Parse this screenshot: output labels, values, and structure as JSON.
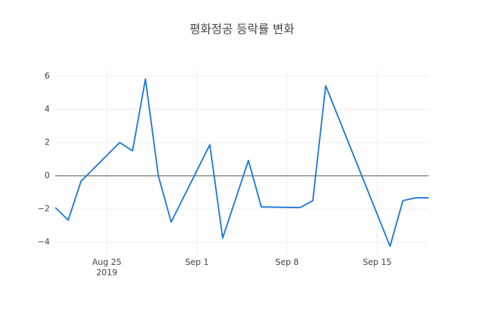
{
  "chart_data": {
    "type": "line",
    "title": "평화정공 등락률 변화",
    "x": [
      "2019-08-21",
      "2019-08-22",
      "2019-08-23",
      "2019-08-26",
      "2019-08-27",
      "2019-08-28",
      "2019-08-29",
      "2019-08-30",
      "2019-09-02",
      "2019-09-03",
      "2019-09-05",
      "2019-09-06",
      "2019-09-09",
      "2019-09-10",
      "2019-09-11",
      "2019-09-16",
      "2019-09-17",
      "2019-09-18",
      "2019-09-19"
    ],
    "series": [
      {
        "name": "등락률",
        "color": "#1f77e0",
        "values": [
          -1.92,
          -2.67,
          -0.33,
          2.0,
          1.5,
          5.83,
          0,
          -2.79,
          1.87,
          -3.75,
          0.92,
          -1.88,
          -1.92,
          -1.5,
          5.42,
          -4.25,
          -1.5,
          -1.33,
          -1.33
        ]
      }
    ],
    "xlim": [
      "2019-08-21",
      "2019-09-19"
    ],
    "xticks": [
      {
        "value": "2019-08-25",
        "label": "Aug 25\n2019"
      },
      {
        "value": "2019-09-01",
        "label": "Sep 1"
      },
      {
        "value": "2019-09-08",
        "label": "Sep 8"
      },
      {
        "value": "2019-09-15",
        "label": "Sep 15"
      }
    ],
    "ylim": [
      -4.83,
      6.42
    ],
    "yticks": [
      {
        "value": -4,
        "label": "−4"
      },
      {
        "value": -2,
        "label": "−2"
      },
      0,
      2,
      4,
      6
    ],
    "grid": true,
    "zeroline": true
  }
}
